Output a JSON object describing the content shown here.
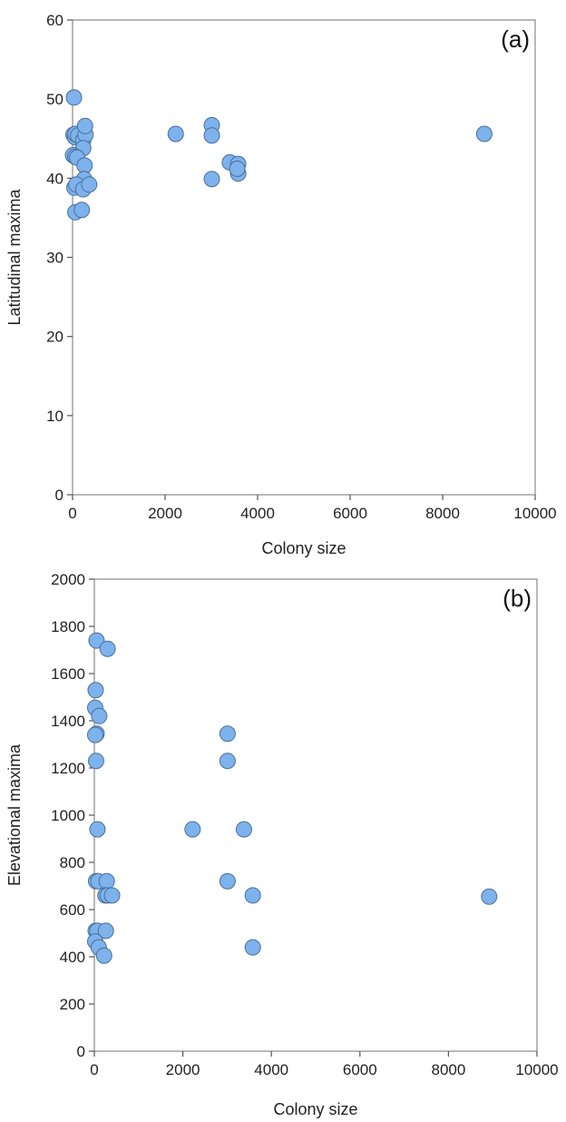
{
  "chart_data": [
    {
      "type": "scatter",
      "panel_label": "(a)",
      "xlabel": "Colony size",
      "ylabel": "Latitudinal maxima",
      "xlim": [
        0,
        10000
      ],
      "ylim": [
        0,
        60
      ],
      "xticks": [
        "0",
        "2000",
        "4000",
        "6000",
        "8000",
        "10000"
      ],
      "yticks": [
        "0",
        "10",
        "20",
        "30",
        "40",
        "50",
        "60"
      ],
      "grid": false,
      "marker_color": "#7eb2ec",
      "marker_edge": "#4a6f9a",
      "points": [
        {
          "x": 30,
          "y": 50.2
        },
        {
          "x": 20,
          "y": 45.5
        },
        {
          "x": 50,
          "y": 45.2
        },
        {
          "x": 60,
          "y": 45.6
        },
        {
          "x": 120,
          "y": 45.4
        },
        {
          "x": 230,
          "y": 44.8
        },
        {
          "x": 280,
          "y": 45.5
        },
        {
          "x": 270,
          "y": 46.6
        },
        {
          "x": 230,
          "y": 43.8
        },
        {
          "x": 10,
          "y": 42.9
        },
        {
          "x": 60,
          "y": 42.7
        },
        {
          "x": 100,
          "y": 42.6
        },
        {
          "x": 260,
          "y": 41.6
        },
        {
          "x": 250,
          "y": 39.9
        },
        {
          "x": 40,
          "y": 38.8
        },
        {
          "x": 80,
          "y": 39.2
        },
        {
          "x": 230,
          "y": 38.6
        },
        {
          "x": 360,
          "y": 39.2
        },
        {
          "x": 60,
          "y": 35.7
        },
        {
          "x": 200,
          "y": 36.0
        },
        {
          "x": 2230,
          "y": 45.6
        },
        {
          "x": 3010,
          "y": 46.7
        },
        {
          "x": 3010,
          "y": 45.4
        },
        {
          "x": 3010,
          "y": 39.9
        },
        {
          "x": 3400,
          "y": 42.0
        },
        {
          "x": 3580,
          "y": 41.8
        },
        {
          "x": 3580,
          "y": 40.6
        },
        {
          "x": 3560,
          "y": 41.2
        },
        {
          "x": 8900,
          "y": 45.6
        }
      ]
    },
    {
      "type": "scatter",
      "panel_label": "(b)",
      "xlabel": "Colony size",
      "ylabel": "Elevational maxima",
      "xlim": [
        0,
        10000
      ],
      "ylim": [
        0,
        2000
      ],
      "xticks": [
        "0",
        "2000",
        "4000",
        "6000",
        "8000",
        "10000"
      ],
      "yticks": [
        "0",
        "200",
        "400",
        "600",
        "800",
        "1000",
        "1200",
        "1400",
        "1600",
        "1800",
        "2000"
      ],
      "grid": false,
      "marker_color": "#7eb2ec",
      "marker_edge": "#4a6f9a",
      "points": [
        {
          "x": 50,
          "y": 1740
        },
        {
          "x": 300,
          "y": 1705
        },
        {
          "x": 30,
          "y": 1530
        },
        {
          "x": 20,
          "y": 1455
        },
        {
          "x": 110,
          "y": 1420
        },
        {
          "x": 50,
          "y": 1345
        },
        {
          "x": 20,
          "y": 1340
        },
        {
          "x": 40,
          "y": 1230
        },
        {
          "x": 70,
          "y": 940
        },
        {
          "x": 40,
          "y": 720
        },
        {
          "x": 90,
          "y": 720
        },
        {
          "x": 280,
          "y": 720
        },
        {
          "x": 250,
          "y": 660
        },
        {
          "x": 300,
          "y": 660
        },
        {
          "x": 400,
          "y": 660
        },
        {
          "x": 30,
          "y": 510
        },
        {
          "x": 70,
          "y": 510
        },
        {
          "x": 260,
          "y": 510
        },
        {
          "x": 20,
          "y": 465
        },
        {
          "x": 100,
          "y": 440
        },
        {
          "x": 220,
          "y": 405
        },
        {
          "x": 2220,
          "y": 940
        },
        {
          "x": 3010,
          "y": 1345
        },
        {
          "x": 3010,
          "y": 1230
        },
        {
          "x": 3010,
          "y": 720
        },
        {
          "x": 3380,
          "y": 940
        },
        {
          "x": 3580,
          "y": 660
        },
        {
          "x": 3580,
          "y": 440
        },
        {
          "x": 8920,
          "y": 655
        }
      ]
    }
  ]
}
